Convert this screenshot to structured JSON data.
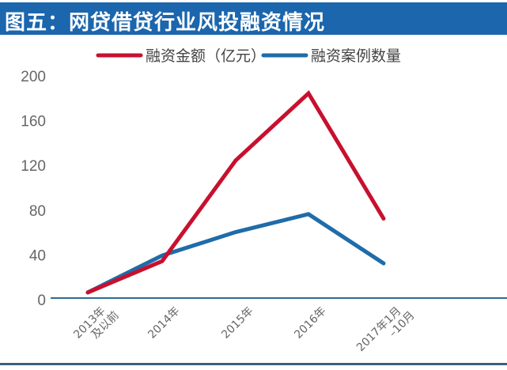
{
  "chart_data": {
    "type": "line",
    "title": "图五：网贷借贷行业风投融资情况",
    "xlabel": "",
    "ylabel": "",
    "categories": [
      "2013年及以前",
      "2014年",
      "2015年",
      "2016年",
      "2017年1月–10月"
    ],
    "category_lines": [
      [
        "2013年",
        "及以前"
      ],
      [
        "2014年"
      ],
      [
        "2015年"
      ],
      [
        "2016年"
      ],
      [
        "2017年1月",
        "–10月"
      ]
    ],
    "ylim": [
      0,
      200
    ],
    "yticks": [
      "0",
      "40",
      "80",
      "120",
      "160",
      "200"
    ],
    "ytick_values": [
      0,
      40,
      80,
      120,
      160,
      200
    ],
    "grid": false,
    "legend_position": "top-right",
    "series": [
      {
        "name": "融资金额（亿元）",
        "color": "#c8102e",
        "values": [
          5,
          33,
          123,
          183,
          71
        ]
      },
      {
        "name": "融资案例数量",
        "color": "#1f6ca8",
        "values": [
          5,
          38,
          59,
          75,
          31
        ]
      }
    ]
  },
  "colors": {
    "title_bg": "#1b66ad",
    "axis": "#2f6b8f",
    "tick_text": "#666666"
  }
}
